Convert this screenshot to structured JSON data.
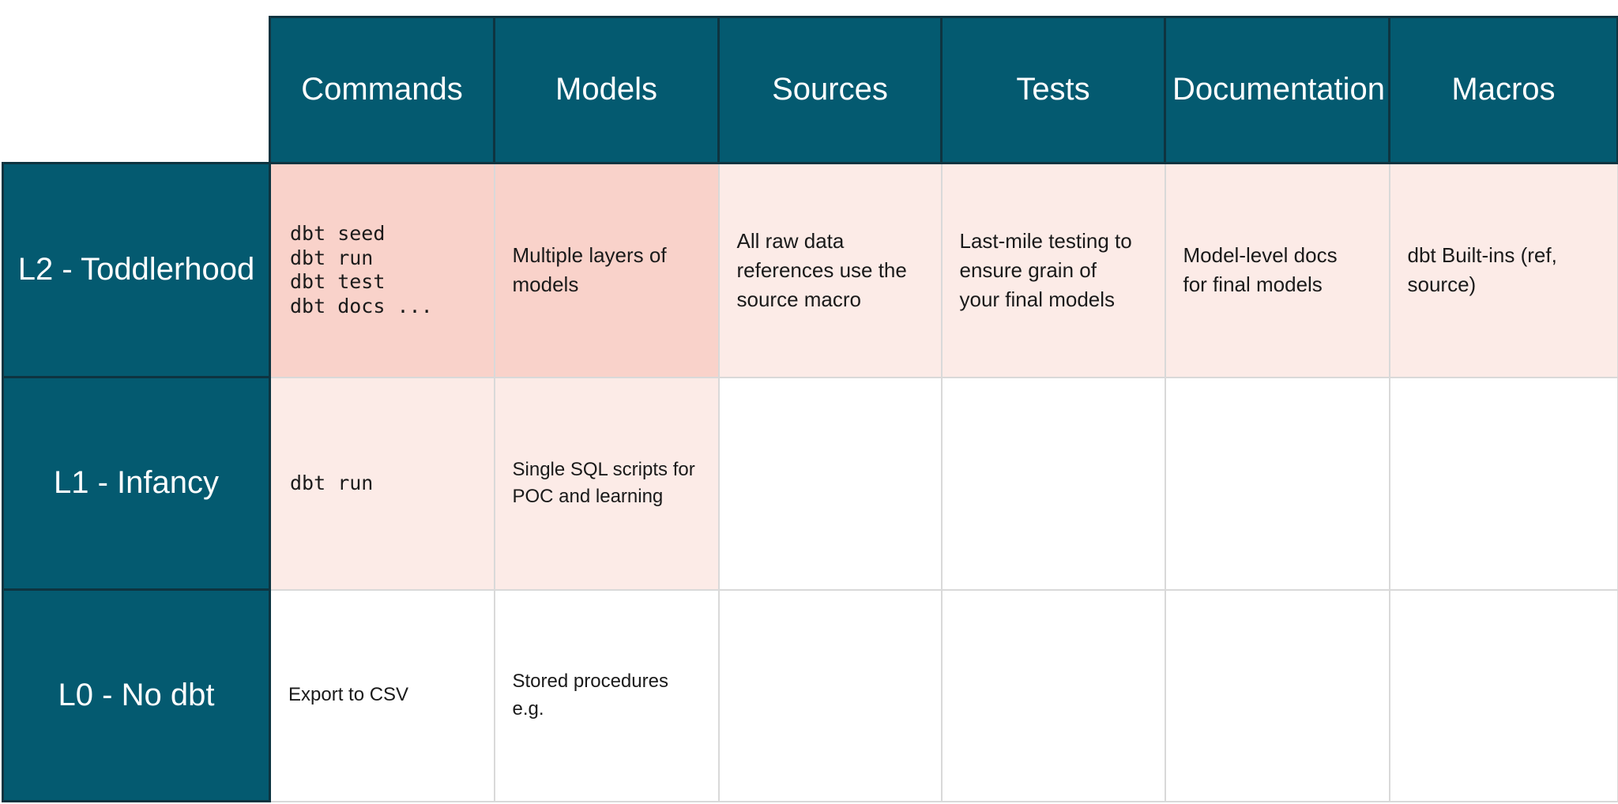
{
  "colors": {
    "teal": "#045a70",
    "teal_border": "#0e3440",
    "pink_strong": "#f9d2ca",
    "pink_light": "#fcebe7",
    "grid_line": "#d9d9d9",
    "text_dark": "#1a1a1a",
    "text_light": "#ffffff"
  },
  "table": {
    "column_headers": [
      "Commands",
      "Models",
      "Sources",
      "Tests",
      "Documentation",
      "Macros"
    ],
    "rows": [
      {
        "label": "L2 - Toddlerhood",
        "cells": [
          {
            "text": "dbt seed\ndbt run\ndbt test\ndbt docs ...",
            "style": "mono",
            "bg": "strong"
          },
          {
            "text": "Multiple layers of\nmodels",
            "bg": "strong"
          },
          {
            "text": "All raw data\nreferences use the\nsource macro",
            "bg": "light"
          },
          {
            "text": "Last-mile testing to\nensure grain of\nyour final models",
            "bg": "light"
          },
          {
            "text": "Model-level docs\nfor final models",
            "bg": "light"
          },
          {
            "text": "dbt Built-ins (ref,\nsource)",
            "bg": "light"
          }
        ]
      },
      {
        "label": "L1 - Infancy",
        "cells": [
          {
            "text": "dbt run",
            "style": "mono",
            "bg": "light"
          },
          {
            "text": "Single SQL scripts for\nPOC and learning",
            "bg": "light"
          },
          {
            "text": "",
            "bg": "none"
          },
          {
            "text": "",
            "bg": "none"
          },
          {
            "text": "",
            "bg": "none"
          },
          {
            "text": "",
            "bg": "none"
          }
        ]
      },
      {
        "label": "L0 - No dbt",
        "cells": [
          {
            "text": "Export to CSV",
            "bg": "none"
          },
          {
            "text": "Stored procedures\ne.g.",
            "bg": "none"
          },
          {
            "text": "",
            "bg": "none"
          },
          {
            "text": "",
            "bg": "none"
          },
          {
            "text": "",
            "bg": "none"
          },
          {
            "text": "",
            "bg": "none"
          }
        ]
      }
    ]
  }
}
